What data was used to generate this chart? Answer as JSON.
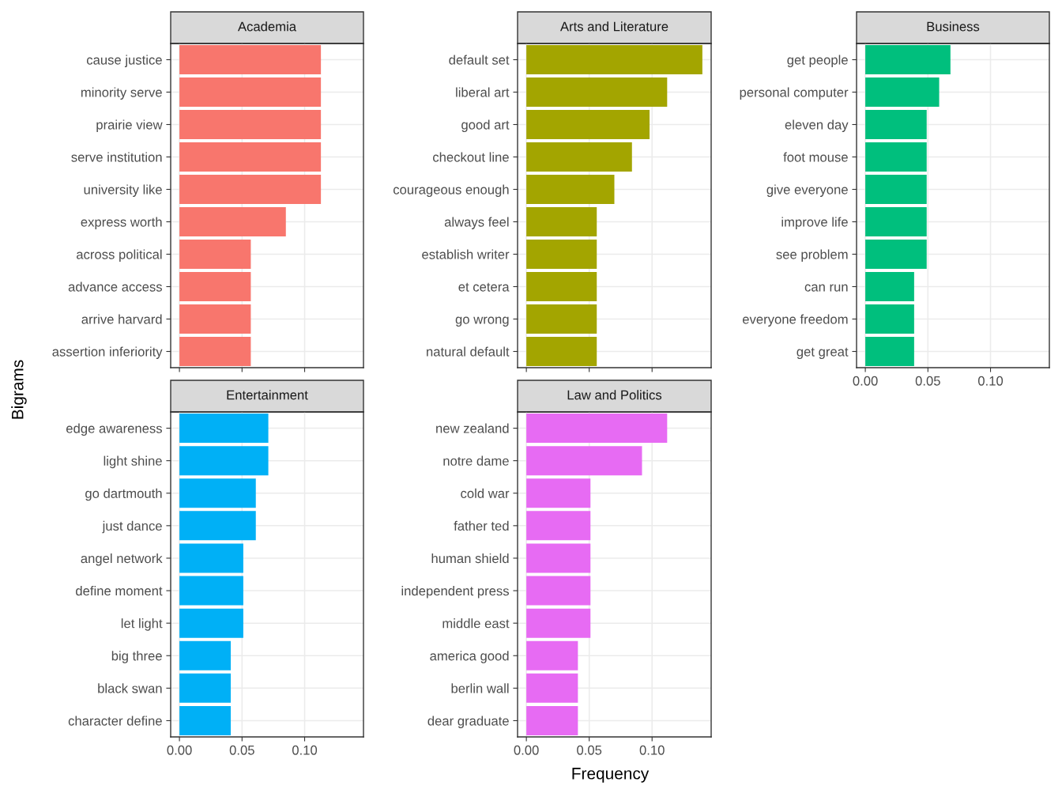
{
  "chart_data": [
    {
      "type": "bar",
      "orientation": "horizontal",
      "title": "Academia",
      "ylabel": "Bigrams",
      "categories": [
        "cause justice",
        "minority serve",
        "prairie view",
        "serve institution",
        "university like",
        "express worth",
        "across political",
        "advance access",
        "arrive harvard",
        "assertion inferiority"
      ],
      "values": [
        0.113,
        0.113,
        0.113,
        0.113,
        0.113,
        0.085,
        0.057,
        0.057,
        0.057,
        0.057
      ],
      "color": "#f8766d",
      "xlim": [
        -0.007,
        0.147
      ],
      "xticks": [
        {
          "value": 0,
          "label": null
        },
        {
          "value": 0.05,
          "label": null
        },
        {
          "value": 0.1,
          "label": null
        }
      ],
      "grid": true,
      "tick_labels": "y"
    },
    {
      "type": "bar",
      "orientation": "horizontal",
      "title": "Arts and Literature",
      "categories": [
        "default set",
        "liberal art",
        "good art",
        "checkout line",
        "courageous enough",
        "always feel",
        "establish writer",
        "et cetera",
        "go wrong",
        "natural default"
      ],
      "values": [
        0.14,
        0.112,
        0.098,
        0.084,
        0.07,
        0.056,
        0.056,
        0.056,
        0.056,
        0.056
      ],
      "color": "#a3a500",
      "xlim": [
        -0.007,
        0.147
      ],
      "xticks": [
        {
          "value": 0,
          "label": null
        },
        {
          "value": 0.05,
          "label": null
        },
        {
          "value": 0.1,
          "label": null
        }
      ],
      "grid": true,
      "tick_labels": "y"
    },
    {
      "type": "bar",
      "orientation": "horizontal",
      "title": "Business",
      "categories": [
        "get people",
        "personal computer",
        "eleven day",
        "foot mouse",
        "give everyone",
        "improve life",
        "see problem",
        "can run",
        "everyone freedom",
        "get great"
      ],
      "values": [
        0.068,
        0.059,
        0.049,
        0.049,
        0.049,
        0.049,
        0.049,
        0.039,
        0.039,
        0.039
      ],
      "color": "#00bf7d",
      "xlim": [
        -0.007,
        0.147
      ],
      "xticks": [
        {
          "value": 0,
          "label": "0.00"
        },
        {
          "value": 0.05,
          "label": "0.05"
        },
        {
          "value": 0.1,
          "label": "0.10"
        }
      ],
      "grid": true
    },
    {
      "type": "bar",
      "orientation": "horizontal",
      "title": "Entertainment",
      "categories": [
        "edge awareness",
        "light shine",
        "go dartmouth",
        "just dance",
        "angel network",
        "define moment",
        "let light",
        "big three",
        "black swan",
        "character define"
      ],
      "values": [
        0.071,
        0.071,
        0.061,
        0.061,
        0.051,
        0.051,
        0.051,
        0.041,
        0.041,
        0.041
      ],
      "color": "#00b0f6",
      "xlim": [
        -0.007,
        0.147
      ],
      "xticks": [
        {
          "value": 0,
          "label": "0.00"
        },
        {
          "value": 0.05,
          "label": "0.05"
        },
        {
          "value": 0.1,
          "label": "0.10"
        }
      ],
      "grid": true
    },
    {
      "type": "bar",
      "orientation": "horizontal",
      "title": "Law and Politics",
      "xlabel": "Frequency",
      "categories": [
        "new zealand",
        "notre dame",
        "cold war",
        "father ted",
        "human shield",
        "independent press",
        "middle east",
        "america good",
        "berlin wall",
        "dear graduate"
      ],
      "values": [
        0.112,
        0.092,
        0.051,
        0.051,
        0.051,
        0.051,
        0.051,
        0.041,
        0.041,
        0.041
      ],
      "color": "#e76bf3",
      "xlim": [
        -0.007,
        0.147
      ],
      "xticks": [
        {
          "value": 0,
          "label": "0.00"
        },
        {
          "value": 0.05,
          "label": "0.05"
        },
        {
          "value": 0.1,
          "label": "0.10"
        }
      ],
      "grid": true
    }
  ]
}
